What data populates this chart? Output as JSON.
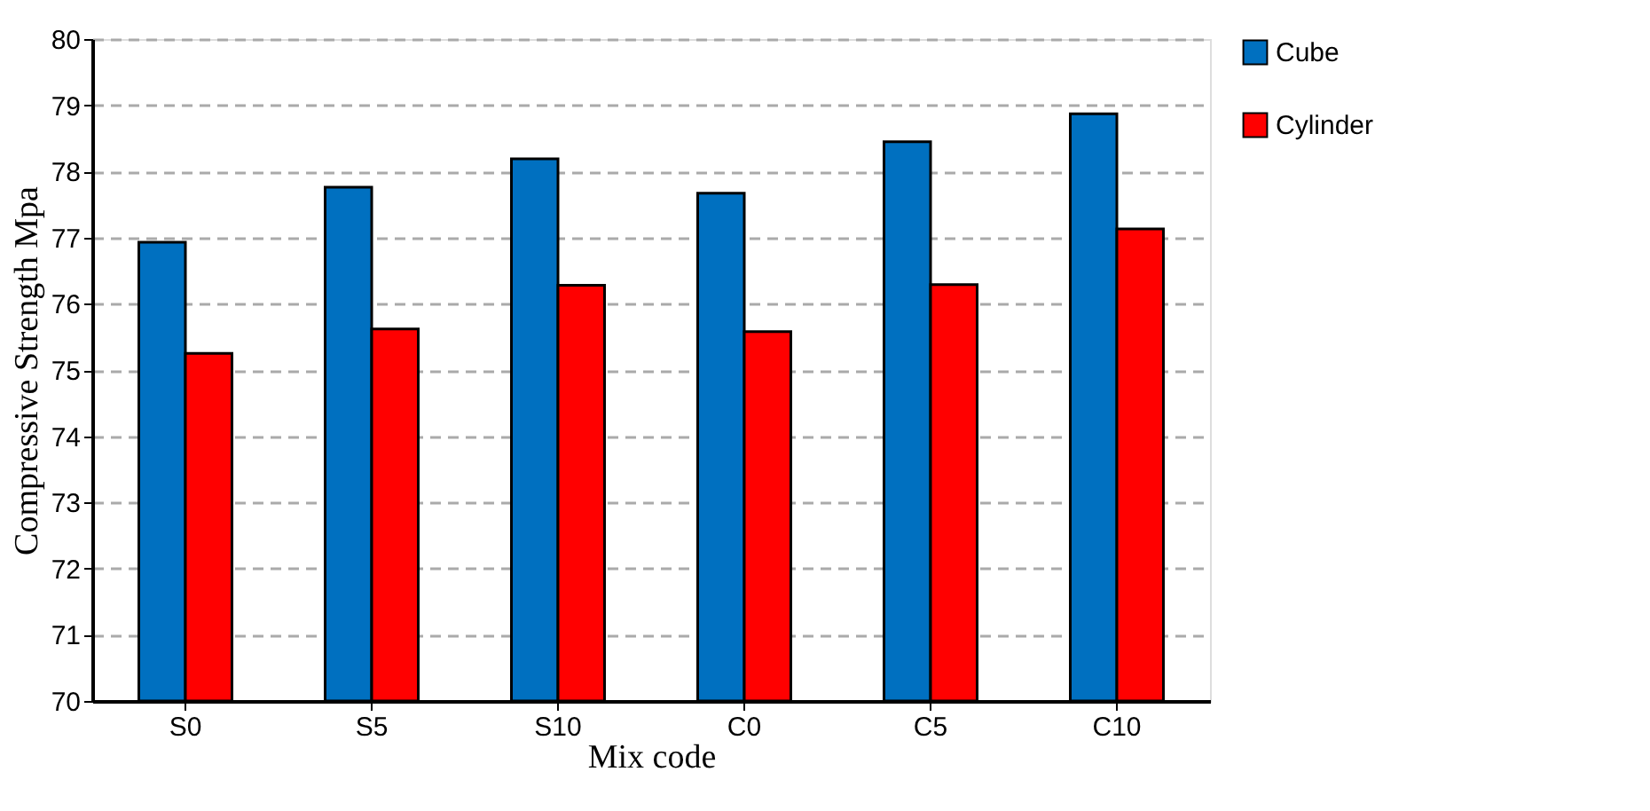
{
  "chart_data": {
    "type": "bar",
    "xlabel": "Mix code",
    "ylabel": "Compressive Strength Mpa",
    "categories": [
      "S0",
      "S5",
      "S10",
      "C0",
      "C5",
      "C10"
    ],
    "series": [
      {
        "name": "Cube",
        "color": "#0070c0",
        "values": [
          76.93,
          77.76,
          78.19,
          77.67,
          78.45,
          78.87
        ]
      },
      {
        "name": "Cylinder",
        "color": "#ff0000",
        "values": [
          75.25,
          75.62,
          76.28,
          75.58,
          76.29,
          77.13
        ]
      }
    ],
    "ylim": [
      70,
      80
    ],
    "yticks": [
      70,
      71,
      72,
      73,
      74,
      75,
      76,
      77,
      78,
      79,
      80
    ],
    "grid": "y",
    "legend": "right"
  }
}
